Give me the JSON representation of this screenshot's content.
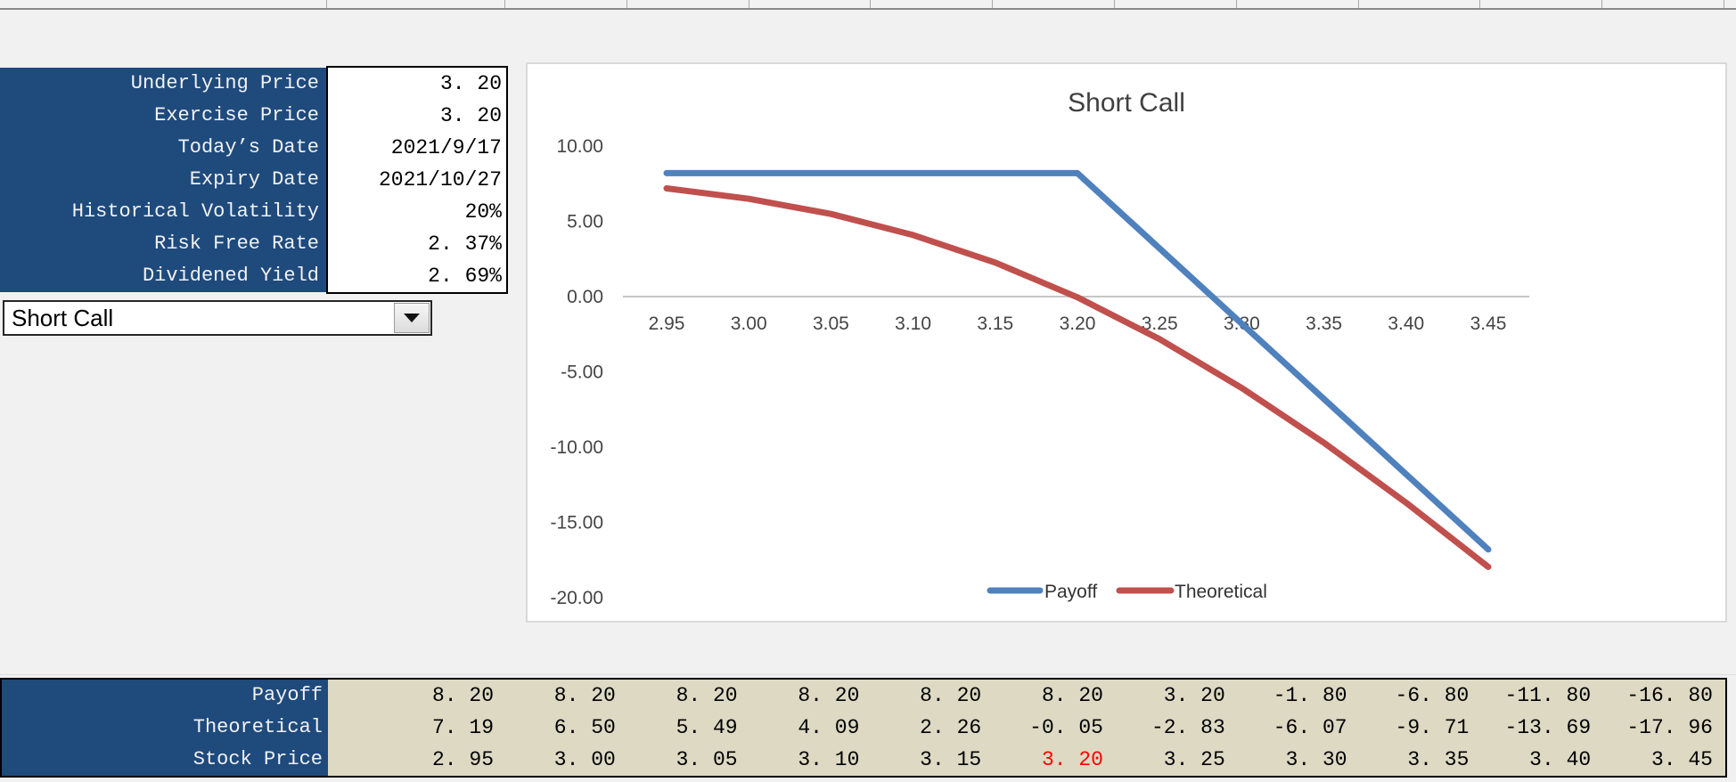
{
  "parameters": {
    "rows": [
      {
        "label": "Underlying Price",
        "value": "3. 20"
      },
      {
        "label": "Exercise Price",
        "value": "3. 20"
      },
      {
        "label": "Today’s Date",
        "value": "2021/9/17"
      },
      {
        "label": "Expiry Date",
        "value": "2021/10/27"
      },
      {
        "label": "Historical Volatility",
        "value": "20%"
      },
      {
        "label": "Risk Free Rate",
        "value": "2. 37%"
      },
      {
        "label": "Dividened Yield",
        "value": "2. 69%"
      }
    ]
  },
  "strategy_dropdown": {
    "value": "Short Call"
  },
  "chart_data": {
    "type": "line",
    "title": "Short Call",
    "x": [
      2.95,
      3.0,
      3.05,
      3.1,
      3.15,
      3.2,
      3.25,
      3.3,
      3.35,
      3.4,
      3.45
    ],
    "xtick_labels": [
      "2.95",
      "3.00",
      "3.05",
      "3.10",
      "3.15",
      "3.20",
      "3.25",
      "3.30",
      "3.35",
      "3.40",
      "3.45"
    ],
    "yticks": [
      10,
      5,
      0,
      -5,
      -10,
      -15,
      -20
    ],
    "ytick_labels": [
      "10.00",
      "5.00",
      "0.00",
      "-5.00",
      "-10.00",
      "-15.00",
      "-20.00"
    ],
    "ylim": [
      -20,
      10
    ],
    "grid": false,
    "legend_position": "bottom-center",
    "series": [
      {
        "name": "Payoff",
        "color": "#4f81bd",
        "values": [
          8.2,
          8.2,
          8.2,
          8.2,
          8.2,
          8.2,
          3.2,
          -1.8,
          -6.8,
          -11.8,
          -16.8
        ]
      },
      {
        "name": "Theoretical",
        "color": "#c0504d",
        "values": [
          7.19,
          6.5,
          5.49,
          4.09,
          2.26,
          -0.05,
          -2.83,
          -6.07,
          -9.71,
          -13.69,
          -17.96
        ]
      }
    ]
  },
  "table": {
    "rows": [
      {
        "label": "Payoff",
        "values": [
          "8. 20",
          "8. 20",
          "8. 20",
          "8. 20",
          "8. 20",
          "8. 20",
          "3. 20",
          "-1. 80",
          "-6. 80",
          "-11. 80",
          "-16. 80"
        ]
      },
      {
        "label": "Theoretical",
        "values": [
          "7. 19",
          "6. 50",
          "5. 49",
          "4. 09",
          "2. 26",
          "-0. 05",
          "-2. 83",
          "-6. 07",
          "-9. 71",
          "-13. 69",
          "-17. 96"
        ]
      },
      {
        "label": "Stock Price",
        "values": [
          "2. 95",
          "3. 00",
          "3. 05",
          "3. 10",
          "3. 15",
          "3. 20",
          "3. 25",
          "3. 30",
          "3. 35",
          "3. 40",
          "3. 45"
        ],
        "highlight_index": 5
      }
    ],
    "highlight_color": "#ff0000"
  },
  "colors": {
    "panel_blue": "#1f4a7c",
    "table_tan": "#ddd9c3",
    "payoff_blue": "#4f81bd",
    "theoretical_red": "#c0504d",
    "highlight_red": "#ff0000",
    "axis_gray": "#c6c6c6",
    "chart_text": "#404040"
  }
}
